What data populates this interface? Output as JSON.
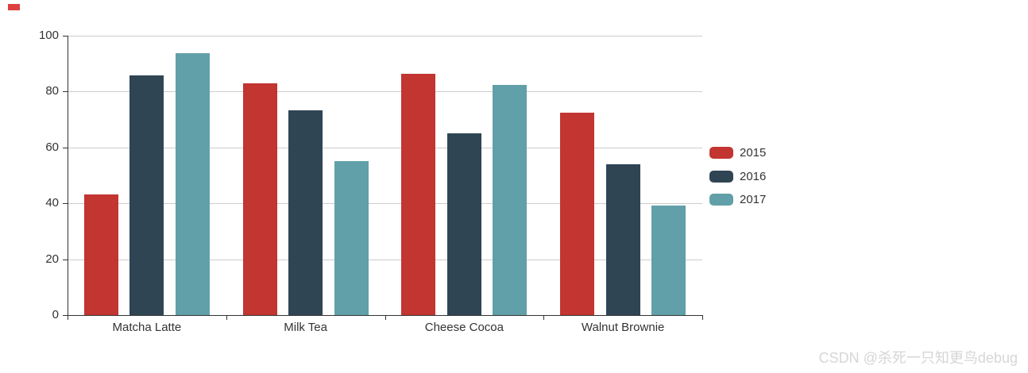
{
  "chart_data": {
    "type": "bar",
    "title": "",
    "categories": [
      "Matcha Latte",
      "Milk Tea",
      "Cheese Cocoa",
      "Walnut Brownie"
    ],
    "series": [
      {
        "name": "2015",
        "color": "#c23531",
        "values": [
          43.3,
          83.1,
          86.4,
          72.4
        ]
      },
      {
        "name": "2016",
        "color": "#2f4554",
        "values": [
          85.8,
          73.4,
          65.2,
          53.9
        ]
      },
      {
        "name": "2017",
        "color": "#61a0a8",
        "values": [
          93.7,
          55.1,
          82.5,
          39.1
        ]
      }
    ],
    "xlabel": "",
    "ylabel": "",
    "ylim": [
      0,
      100
    ],
    "yticks": [
      0,
      20,
      40,
      60,
      80,
      100
    ],
    "grid": true,
    "legend_position": "right",
    "axis_color": "#333333",
    "gridline_color": "#cccccc",
    "label_color": "#333333"
  },
  "watermark": {
    "text": "CSDN @杀死一只知更鸟debug",
    "color": "#d6d6d6"
  },
  "corner_marker": {
    "color": "#de3f3f"
  }
}
